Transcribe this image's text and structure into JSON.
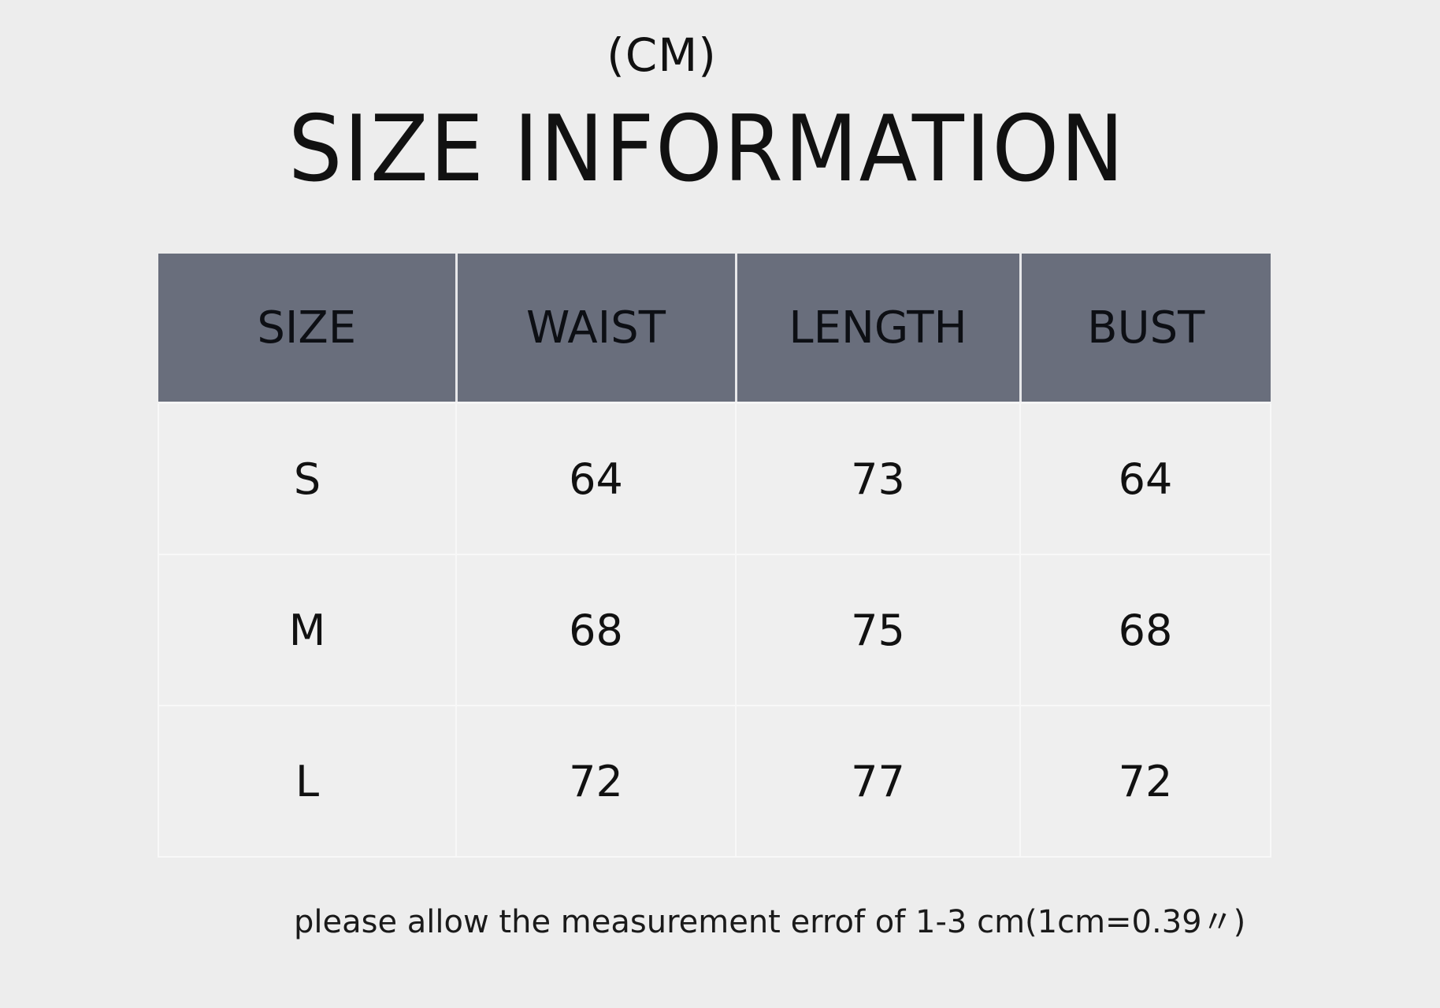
{
  "unit_label": "(CM)",
  "title": "SIZE INFORMATION",
  "table": {
    "headers": [
      "SIZE",
      "WAIST",
      "LENGTH",
      "BUST"
    ],
    "rows": [
      [
        "S",
        "64",
        "73",
        "64"
      ],
      [
        "M",
        "68",
        "75",
        "68"
      ],
      [
        "L",
        "72",
        "77",
        "72"
      ]
    ]
  },
  "note": "please allow the measurement errof of 1-3 cm(1cm=0.39〃)",
  "colors": {
    "header_bg": "#696e7c",
    "background": "#ededed"
  }
}
